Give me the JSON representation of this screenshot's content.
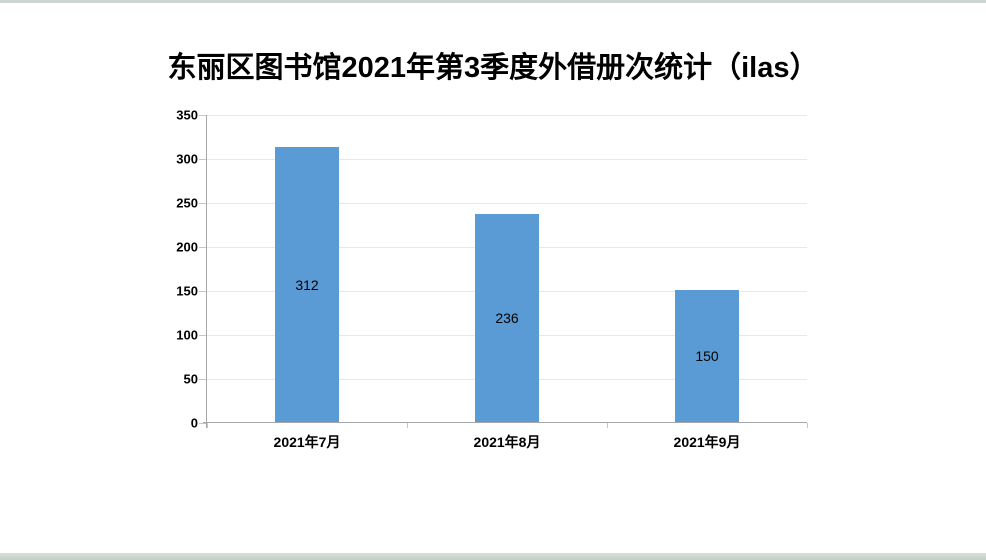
{
  "window": {
    "background": "#ffffff",
    "top_strip_color": "#ccd4d4",
    "bottom_strip_color": "#c3cfc7"
  },
  "chart_data": {
    "type": "bar",
    "title": "东丽区图书馆2021年第3季度外借册次统计（ilas）",
    "categories": [
      "2021年7月",
      "2021年8月",
      "2021年9月"
    ],
    "values": [
      312,
      236,
      150
    ],
    "xlabel": "",
    "ylabel": "",
    "ylim": [
      0,
      350
    ],
    "yticks": [
      0,
      50,
      100,
      150,
      200,
      250,
      300,
      350
    ],
    "grid": true,
    "legend": "none",
    "bar_color": "#5B9BD5",
    "gridline_color": "#e8e8e8",
    "axis_color": "#a6a6a6",
    "tick_color": "#c6c6c6",
    "value_label_position": "inside-center"
  }
}
